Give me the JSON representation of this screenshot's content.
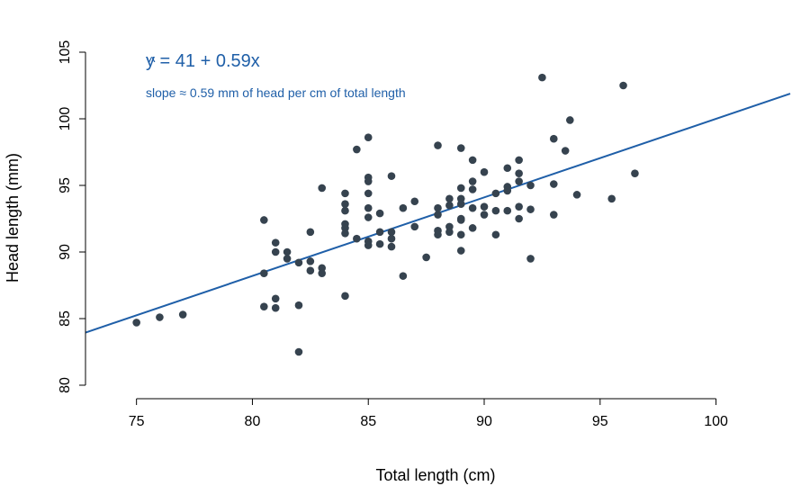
{
  "chart_data": {
    "type": "scatter",
    "xlabel": "Total length (cm)",
    "ylabel": "Head length (mm)",
    "xlim": [
      72.8,
      103.2
    ],
    "ylim": [
      80,
      105
    ],
    "xticks": [
      75,
      80,
      85,
      90,
      95,
      100
    ],
    "yticks": [
      80,
      85,
      90,
      95,
      100,
      105
    ],
    "colors": {
      "points": "#36434f",
      "fit": "#1f5fa8"
    },
    "annotations": {
      "equation_hat": "^",
      "equation": "y = 41 + 0.59x",
      "slope_note": "slope ≈ 0.59 mm of head per cm of total length"
    },
    "fit": {
      "intercept": 41,
      "slope": 0.59
    },
    "points": [
      {
        "x": 75,
        "y": 84.7
      },
      {
        "x": 76,
        "y": 85.1
      },
      {
        "x": 77,
        "y": 85.3
      },
      {
        "x": 80.5,
        "y": 92.4
      },
      {
        "x": 80.5,
        "y": 88.4
      },
      {
        "x": 80.5,
        "y": 85.9
      },
      {
        "x": 81,
        "y": 90.7
      },
      {
        "x": 81,
        "y": 90.0
      },
      {
        "x": 81,
        "y": 86.5
      },
      {
        "x": 81,
        "y": 85.8
      },
      {
        "x": 81.5,
        "y": 90.0
      },
      {
        "x": 81.5,
        "y": 89.5
      },
      {
        "x": 82,
        "y": 89.2
      },
      {
        "x": 82,
        "y": 86.0
      },
      {
        "x": 82,
        "y": 82.5
      },
      {
        "x": 82.5,
        "y": 91.5
      },
      {
        "x": 82.5,
        "y": 89.3
      },
      {
        "x": 82.5,
        "y": 88.6
      },
      {
        "x": 83,
        "y": 94.8
      },
      {
        "x": 83,
        "y": 88.8
      },
      {
        "x": 83,
        "y": 88.4
      },
      {
        "x": 84,
        "y": 94.4
      },
      {
        "x": 84,
        "y": 93.6
      },
      {
        "x": 84,
        "y": 93.1
      },
      {
        "x": 84,
        "y": 92.1
      },
      {
        "x": 84,
        "y": 91.8
      },
      {
        "x": 84,
        "y": 91.4
      },
      {
        "x": 84,
        "y": 86.7
      },
      {
        "x": 84.5,
        "y": 97.7
      },
      {
        "x": 84.5,
        "y": 91.0
      },
      {
        "x": 85,
        "y": 98.6
      },
      {
        "x": 85,
        "y": 95.6
      },
      {
        "x": 85,
        "y": 95.3
      },
      {
        "x": 85,
        "y": 94.4
      },
      {
        "x": 85,
        "y": 93.3
      },
      {
        "x": 85,
        "y": 92.6
      },
      {
        "x": 85,
        "y": 90.8
      },
      {
        "x": 85,
        "y": 90.5
      },
      {
        "x": 85.5,
        "y": 92.9
      },
      {
        "x": 85.5,
        "y": 91.5
      },
      {
        "x": 85.5,
        "y": 90.6
      },
      {
        "x": 86,
        "y": 95.7
      },
      {
        "x": 86,
        "y": 91.5
      },
      {
        "x": 86,
        "y": 91.0
      },
      {
        "x": 86,
        "y": 90.4
      },
      {
        "x": 86.5,
        "y": 93.3
      },
      {
        "x": 86.5,
        "y": 88.2
      },
      {
        "x": 87,
        "y": 93.8
      },
      {
        "x": 87,
        "y": 91.9
      },
      {
        "x": 87.5,
        "y": 89.6
      },
      {
        "x": 88,
        "y": 98.0
      },
      {
        "x": 88,
        "y": 93.3
      },
      {
        "x": 88,
        "y": 92.8
      },
      {
        "x": 88,
        "y": 91.6
      },
      {
        "x": 88,
        "y": 91.3
      },
      {
        "x": 88.5,
        "y": 94.0
      },
      {
        "x": 88.5,
        "y": 93.5
      },
      {
        "x": 88.5,
        "y": 91.9
      },
      {
        "x": 88.5,
        "y": 91.5
      },
      {
        "x": 89,
        "y": 97.8
      },
      {
        "x": 89,
        "y": 94.8
      },
      {
        "x": 89,
        "y": 94.0
      },
      {
        "x": 89,
        "y": 93.6
      },
      {
        "x": 89,
        "y": 92.5
      },
      {
        "x": 89,
        "y": 92.4
      },
      {
        "x": 89,
        "y": 91.3
      },
      {
        "x": 89,
        "y": 90.1
      },
      {
        "x": 89.5,
        "y": 96.9
      },
      {
        "x": 89.5,
        "y": 95.3
      },
      {
        "x": 89.5,
        "y": 94.7
      },
      {
        "x": 89.5,
        "y": 93.3
      },
      {
        "x": 89.5,
        "y": 91.8
      },
      {
        "x": 90,
        "y": 96.0
      },
      {
        "x": 90,
        "y": 93.4
      },
      {
        "x": 90,
        "y": 92.8
      },
      {
        "x": 90.5,
        "y": 94.4
      },
      {
        "x": 90.5,
        "y": 93.1
      },
      {
        "x": 90.5,
        "y": 91.3
      },
      {
        "x": 91,
        "y": 96.3
      },
      {
        "x": 91,
        "y": 94.9
      },
      {
        "x": 91,
        "y": 94.6
      },
      {
        "x": 91,
        "y": 93.1
      },
      {
        "x": 91.5,
        "y": 96.9
      },
      {
        "x": 91.5,
        "y": 95.9
      },
      {
        "x": 91.5,
        "y": 95.3
      },
      {
        "x": 91.5,
        "y": 93.4
      },
      {
        "x": 91.5,
        "y": 92.5
      },
      {
        "x": 92,
        "y": 95.0
      },
      {
        "x": 92,
        "y": 93.2
      },
      {
        "x": 92,
        "y": 89.5
      },
      {
        "x": 92.5,
        "y": 103.1
      },
      {
        "x": 93,
        "y": 98.5
      },
      {
        "x": 93,
        "y": 95.1
      },
      {
        "x": 93,
        "y": 92.8
      },
      {
        "x": 93.5,
        "y": 97.6
      },
      {
        "x": 93.7,
        "y": 99.9
      },
      {
        "x": 94,
        "y": 94.3
      },
      {
        "x": 95.5,
        "y": 94.0
      },
      {
        "x": 96,
        "y": 102.5
      },
      {
        "x": 96.5,
        "y": 95.9
      }
    ]
  }
}
